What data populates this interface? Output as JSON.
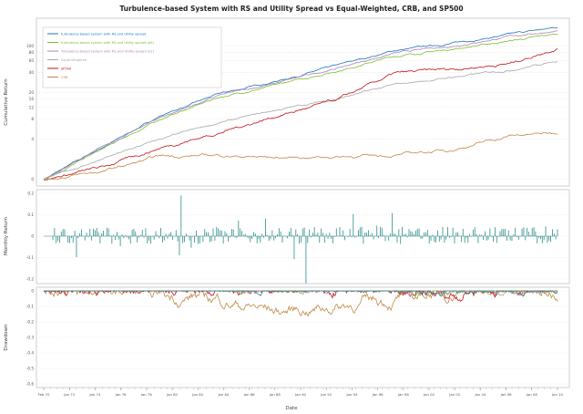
{
  "title": "Turbulence-based System with RS and Utility Spread vs Equal-Weighted, CRB, and SP500",
  "xlabel": "Date",
  "chart_data": [
    {
      "type": "line",
      "panel": "cumulative",
      "ylabel": "Cumulative Return",
      "ylim": [
        0,
        200
      ],
      "yticks": [
        0,
        4,
        8,
        12,
        16,
        20,
        40,
        60,
        80,
        100
      ],
      "grid": true,
      "legend_position": "top-left",
      "x": [
        1970,
        1975,
        1980,
        1985,
        1990,
        1995,
        2000,
        2005,
        2010,
        2014
      ],
      "series": [
        {
          "name": "turbulence-based system with RS and Utility spread",
          "color": "#1f77b4",
          "values": [
            1,
            3,
            9,
            19,
            30,
            50,
            85,
            110,
            150,
            190
          ]
        },
        {
          "name": "turbulence-based system with RS and Utility spread (alt)",
          "color": "#7fbf2a",
          "values": [
            1,
            2.8,
            8,
            17,
            26,
            42,
            70,
            90,
            120,
            150
          ]
        },
        {
          "name": "Turbulence-based system with RS and Utility spread (v2)",
          "color": "#b07fc7",
          "values": [
            1,
            3,
            8.5,
            18,
            28,
            46,
            78,
            100,
            140,
            170
          ]
        },
        {
          "name": "Equal-Weighted",
          "color": "#a8a8a8",
          "values": [
            1,
            2,
            4,
            7,
            11,
            16,
            26,
            34,
            44,
            60
          ]
        },
        {
          "name": "SP500",
          "color": "#c0151b",
          "values": [
            1,
            1.5,
            3,
            5,
            9,
            15,
            38,
            45,
            55,
            95
          ]
        },
        {
          "name": "CRB",
          "color": "#c28a48",
          "values": [
            1,
            1.3,
            2.2,
            2.3,
            2.1,
            2.2,
            2.3,
            2.8,
            4.5,
            5
          ]
        }
      ]
    },
    {
      "type": "bar",
      "panel": "monthly",
      "ylabel": "Monthly Return",
      "ylim": [
        -0.2,
        0.2
      ],
      "yticks": [
        -0.2,
        -0.1,
        0,
        0.1,
        0.2
      ],
      "color": "#2f8a8a"
    },
    {
      "type": "area",
      "panel": "drawdown",
      "ylabel": "Drawdown",
      "ylim": [
        -0.6,
        0
      ],
      "yticks": [
        0,
        -0.1,
        -0.2,
        -0.3,
        -0.4,
        -0.5,
        -0.6
      ],
      "series_colors": [
        "#2f8a8a",
        "#7fbf2a",
        "#b07fc7",
        "#a8a8a8",
        "#c0151b",
        "#c28a48"
      ]
    }
  ],
  "xticks": [
    "Feb 70",
    "Jan 72",
    "Jan 74",
    "Jan 76",
    "Jan 78",
    "Jan 80",
    "Jan 82",
    "Jan 84",
    "Jan 86",
    "Jan 88",
    "Jan 90",
    "Jan 92",
    "Jan 94",
    "Jan 96",
    "Jan 98",
    "Jan 00",
    "Jan 02",
    "Jan 04",
    "Jan 06",
    "Jan 08",
    "Jan 10"
  ]
}
